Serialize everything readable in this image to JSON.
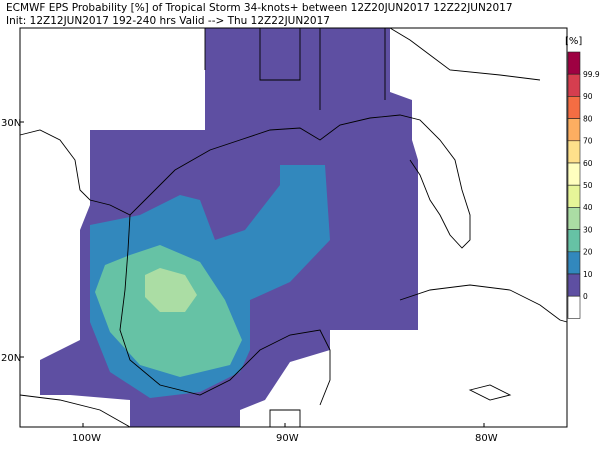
{
  "title": {
    "line1": "ECMWF EPS Probability [%] of Tropical Storm 34-knots+ between 12Z20JUN2017 12Z22JUN2017",
    "line2": "Init: 12Z12JUN2017 192-240 hrs Valid --> Thu 12Z22JUN2017"
  },
  "axes": {
    "lat_labels": [
      "30N",
      "20N"
    ],
    "lon_labels": [
      "100W",
      "90W",
      "80W"
    ]
  },
  "colorbar": {
    "unit": "[%]",
    "labels": [
      "99.9",
      "90",
      "80",
      "70",
      "60",
      "50",
      "40",
      "30",
      "20",
      "10",
      "0"
    ],
    "colors": [
      "#9e0142",
      "#d53e4f",
      "#f46d43",
      "#fdae61",
      "#fee08b",
      "#ffffbf",
      "#e6f598",
      "#abdda4",
      "#66c2a5",
      "#3288bd",
      "#5e4fa2",
      "#ffffff"
    ]
  },
  "field_colors": {
    "p0_10": "#5e4fa2",
    "p10_20": "#3288bd",
    "p20_30": "#66c2a5",
    "p30_40": "#abdda4"
  }
}
